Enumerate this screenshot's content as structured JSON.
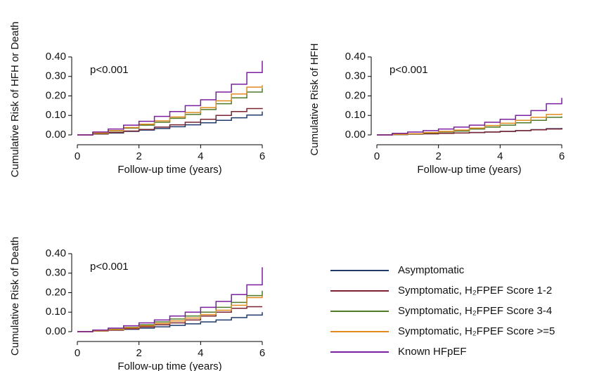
{
  "legend": [
    {
      "name": "Asymptomatic",
      "color": "#1f3a6b"
    },
    {
      "name": "Symptomatic, H₂FPEF Score 1-2",
      "color": "#7a2230"
    },
    {
      "name": "Symptomatic, H₂FPEF Score 3-4",
      "color": "#4f7a28"
    },
    {
      "name": "Symptomatic, H₂FPEF Score >=5",
      "color": "#e08a1e"
    },
    {
      "name": "Known HFpEF",
      "color": "#7a1fa0"
    }
  ],
  "chart_data": [
    {
      "type": "line",
      "y_label": "Cumulative Risk of HFH or Death",
      "x_label": "Follow-up time (years)",
      "annotation": "p<0.001",
      "x": [
        0,
        0.5,
        1,
        1.5,
        2,
        2.5,
        3,
        3.5,
        4,
        4.5,
        5,
        5.5,
        6
      ],
      "xlim": [
        0,
        6
      ],
      "xticks": [
        0,
        2,
        4,
        6
      ],
      "ylim": [
        0,
        0.4
      ],
      "yticks": [
        {
          "value": 0,
          "label": "0.00"
        },
        {
          "value": 0.1,
          "label": "0.10"
        },
        {
          "value": 0.2,
          "label": "0.20"
        },
        {
          "value": 0.3,
          "label": "0.30"
        },
        {
          "value": 0.4,
          "label": "0.40"
        }
      ],
      "series": [
        {
          "values": [
            0,
            0.005,
            0.01,
            0.018,
            0.025,
            0.033,
            0.042,
            0.052,
            0.062,
            0.075,
            0.088,
            0.102,
            0.12
          ]
        },
        {
          "values": [
            0,
            0.005,
            0.012,
            0.02,
            0.028,
            0.04,
            0.052,
            0.065,
            0.08,
            0.1,
            0.12,
            0.135,
            0.138
          ]
        },
        {
          "values": [
            0,
            0.008,
            0.02,
            0.035,
            0.05,
            0.065,
            0.085,
            0.105,
            0.13,
            0.16,
            0.19,
            0.22,
            0.24
          ]
        },
        {
          "values": [
            0,
            0.01,
            0.022,
            0.038,
            0.055,
            0.072,
            0.092,
            0.115,
            0.14,
            0.175,
            0.21,
            0.245,
            0.255
          ]
        },
        {
          "values": [
            0,
            0.015,
            0.03,
            0.05,
            0.07,
            0.095,
            0.12,
            0.15,
            0.18,
            0.22,
            0.26,
            0.32,
            0.38
          ]
        }
      ]
    },
    {
      "type": "line",
      "y_label": "Cumulative Risk of HFH",
      "x_label": "Follow-up time (years)",
      "annotation": "p<0.001",
      "x": [
        0,
        0.5,
        1,
        1.5,
        2,
        2.5,
        3,
        3.5,
        4,
        4.5,
        5,
        5.5,
        6
      ],
      "xlim": [
        0,
        6
      ],
      "xticks": [
        0,
        2,
        4,
        6
      ],
      "ylim": [
        0,
        0.4
      ],
      "yticks": [
        {
          "value": 0,
          "label": "0.00"
        },
        {
          "value": 0.1,
          "label": "0.10"
        },
        {
          "value": 0.2,
          "label": "0.20"
        },
        {
          "value": 0.3,
          "label": "0.30"
        },
        {
          "value": 0.4,
          "label": "0.40"
        }
      ],
      "series": [
        {
          "values": [
            0,
            0.002,
            0.004,
            0.006,
            0.008,
            0.01,
            0.012,
            0.015,
            0.018,
            0.022,
            0.027,
            0.032,
            0.036
          ]
        },
        {
          "values": [
            0,
            0.002,
            0.004,
            0.006,
            0.008,
            0.01,
            0.012,
            0.015,
            0.018,
            0.022,
            0.026,
            0.03,
            0.034
          ]
        },
        {
          "values": [
            0,
            0.002,
            0.005,
            0.01,
            0.015,
            0.02,
            0.03,
            0.04,
            0.05,
            0.062,
            0.075,
            0.09,
            0.095
          ]
        },
        {
          "values": [
            0,
            0.003,
            0.006,
            0.012,
            0.018,
            0.025,
            0.035,
            0.048,
            0.06,
            0.075,
            0.09,
            0.105,
            0.11
          ]
        },
        {
          "values": [
            0,
            0.008,
            0.015,
            0.022,
            0.03,
            0.04,
            0.05,
            0.065,
            0.08,
            0.1,
            0.125,
            0.16,
            0.19
          ]
        }
      ]
    },
    {
      "type": "line",
      "y_label": "Cumulative Risk of Death",
      "x_label": "Follow-up time (years)",
      "annotation": "p<0.001",
      "x": [
        0,
        0.5,
        1,
        1.5,
        2,
        2.5,
        3,
        3.5,
        4,
        4.5,
        5,
        5.5,
        6
      ],
      "xlim": [
        0,
        6
      ],
      "xticks": [
        0,
        2,
        4,
        6
      ],
      "ylim": [
        0,
        0.4
      ],
      "yticks": [
        {
          "value": 0,
          "label": "0.00"
        },
        {
          "value": 0.1,
          "label": "0.10"
        },
        {
          "value": 0.2,
          "label": "0.20"
        },
        {
          "value": 0.3,
          "label": "0.30"
        },
        {
          "value": 0.4,
          "label": "0.40"
        }
      ],
      "series": [
        {
          "values": [
            0,
            0.003,
            0.007,
            0.012,
            0.018,
            0.025,
            0.032,
            0.04,
            0.05,
            0.06,
            0.072,
            0.085,
            0.1
          ]
        },
        {
          "values": [
            0,
            0.004,
            0.008,
            0.015,
            0.025,
            0.035,
            0.045,
            0.06,
            0.08,
            0.1,
            0.12,
            0.128,
            0.128
          ]
        },
        {
          "values": [
            0,
            0.005,
            0.012,
            0.022,
            0.035,
            0.05,
            0.065,
            0.08,
            0.1,
            0.125,
            0.15,
            0.185,
            0.21
          ]
        },
        {
          "values": [
            0,
            0.004,
            0.01,
            0.02,
            0.03,
            0.042,
            0.055,
            0.07,
            0.088,
            0.11,
            0.135,
            0.175,
            0.185
          ]
        },
        {
          "values": [
            0,
            0.008,
            0.018,
            0.03,
            0.045,
            0.06,
            0.08,
            0.1,
            0.125,
            0.155,
            0.19,
            0.24,
            0.33
          ]
        }
      ]
    }
  ]
}
